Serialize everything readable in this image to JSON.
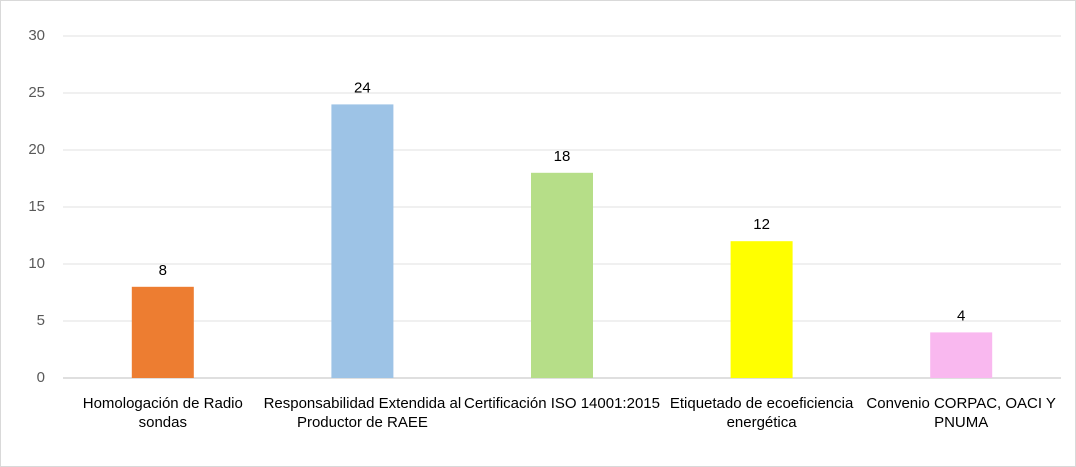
{
  "chart_data": {
    "type": "bar",
    "categories": [
      "Homologación de Radio sondas",
      "Responsabilidad Extendida al Productor de RAEE",
      "Certificación ISO 14001:2015",
      "Etiquetado de ecoeficiencia energética",
      "Convenio CORPAC, OACI Y PNUMA"
    ],
    "values": [
      8,
      24,
      18,
      12,
      4
    ],
    "colors": [
      "#ed7d31",
      "#9dc3e6",
      "#b6de88",
      "#ffff00",
      "#f9b8ef"
    ],
    "ylim": [
      0,
      30
    ],
    "yticks": [
      0,
      5,
      10,
      15,
      20,
      25,
      30
    ],
    "grid": true
  }
}
